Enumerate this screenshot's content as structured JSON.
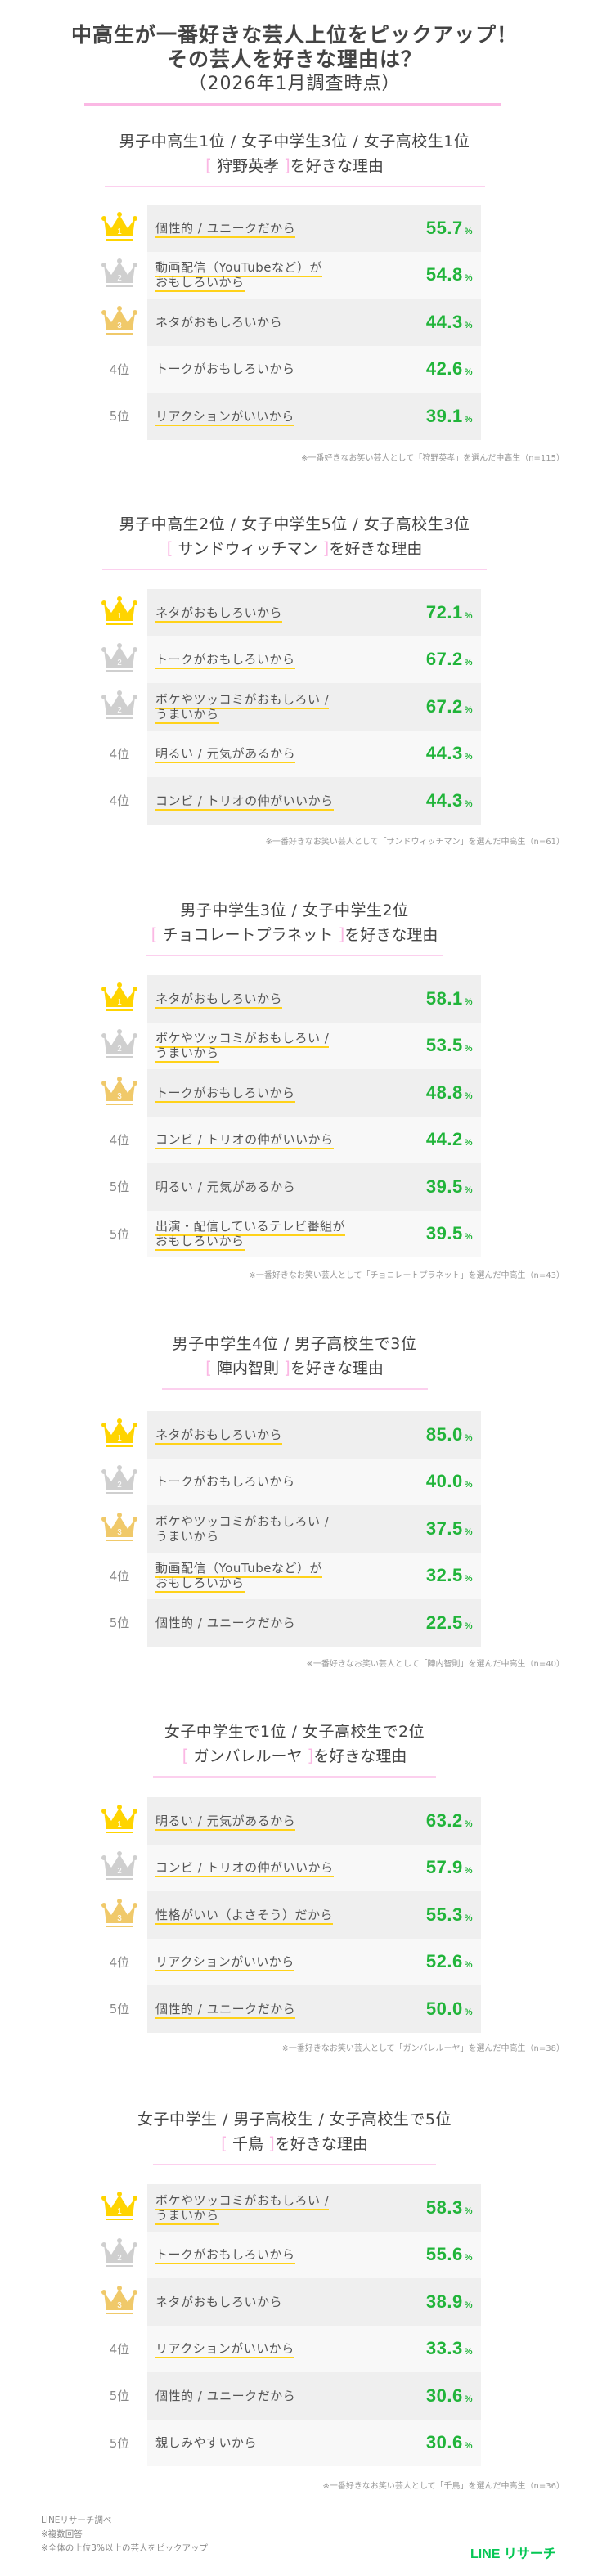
{
  "title": {
    "line1": "中高生が一番好きな芸人上位をピックアップ！",
    "line2": "その芸人を好きな理由は？",
    "line3": "（2026年1月調査時点）"
  },
  "colors": {
    "accent_pink": "#fbb8e4",
    "percent_green": "#21b43a",
    "underline_yellow": "#ffd21a",
    "gold_crown": "#ffd400",
    "silver_crown": "#cccccc",
    "bronze_crown": "#f0c96a",
    "brand_green": "#06c755"
  },
  "sections": [
    {
      "rank_line": "男子中高生1位 / 女子中学生3位 / 女子高校生1位",
      "name": "狩野英孝",
      "suffix": "を好きな理由",
      "note": "※一番好きなお笑い芸人として「狩野英孝」を選んだ中高生（n=115）",
      "rows": [
        {
          "rank": "1",
          "lines": [
            "個性的 / ユニークだから"
          ],
          "pct": "55.7"
        },
        {
          "rank": "2",
          "lines": [
            "動画配信（YouTubeなど）が",
            "おもしろいから"
          ],
          "pct": "54.8"
        },
        {
          "rank": "3",
          "lines": [
            "ネタがおもしろいから"
          ],
          "pct": "44.3"
        },
        {
          "rank": "4位",
          "lines": [
            "トークがおもしろいから"
          ],
          "pct": "42.6"
        },
        {
          "rank": "5位",
          "lines": [
            "リアクションがいいから"
          ],
          "pct": "39.1"
        }
      ]
    },
    {
      "rank_line": "男子中高生2位 / 女子中学生5位 / 女子高校生3位",
      "name": "サンドウィッチマン",
      "suffix": "を好きな理由",
      "note": "※一番好きなお笑い芸人として「サンドウィッチマン」を選んだ中高生（n=61）",
      "rows": [
        {
          "rank": "1",
          "lines": [
            "ネタがおもしろいから"
          ],
          "pct": "72.1"
        },
        {
          "rank": "2",
          "lines": [
            "トークがおもしろいから"
          ],
          "pct": "67.2"
        },
        {
          "rank": "2",
          "lines": [
            "ボケやツッコミがおもしろい /",
            "うまいから"
          ],
          "pct": "67.2"
        },
        {
          "rank": "4位",
          "lines": [
            "明るい / 元気があるから"
          ],
          "pct": "44.3"
        },
        {
          "rank": "4位",
          "lines": [
            "コンビ / トリオの仲がいいから"
          ],
          "pct": "44.3"
        }
      ]
    },
    {
      "rank_line": "男子中学生3位 / 女子中学生2位",
      "name": "チョコレートプラネット",
      "suffix": "を好きな理由",
      "note": "※一番好きなお笑い芸人として「チョコレートプラネット」を選んだ中高生（n=43）",
      "rows": [
        {
          "rank": "1",
          "lines": [
            "ネタがおもしろいから"
          ],
          "pct": "58.1"
        },
        {
          "rank": "2",
          "lines": [
            "ボケやツッコミがおもしろい /",
            "うまいから"
          ],
          "pct": "53.5"
        },
        {
          "rank": "3",
          "lines": [
            "トークがおもしろいから"
          ],
          "pct": "48.8"
        },
        {
          "rank": "4位",
          "lines": [
            "コンビ / トリオの仲がいいから"
          ],
          "pct": "44.2"
        },
        {
          "rank": "5位",
          "lines": [
            "明るい / 元気があるから"
          ],
          "pct": "39.5"
        },
        {
          "rank": "5位",
          "lines": [
            "出演・配信しているテレビ番組が",
            "おもしろいから"
          ],
          "pct": "39.5"
        }
      ]
    },
    {
      "rank_line": "男子中学生4位 / 男子高校生で3位",
      "name": "陣内智則",
      "suffix": "を好きな理由",
      "note": "※一番好きなお笑い芸人として「陣内智則」を選んだ中高生（n=40）",
      "rows": [
        {
          "rank": "1",
          "lines": [
            "ネタがおもしろいから"
          ],
          "pct": "85.0"
        },
        {
          "rank": "2",
          "lines": [
            "トークがおもしろいから"
          ],
          "pct": "40.0"
        },
        {
          "rank": "3",
          "lines": [
            "ボケやツッコミがおもしろい /",
            "うまいから"
          ],
          "pct": "37.5"
        },
        {
          "rank": "4位",
          "lines": [
            "動画配信（YouTubeなど）が",
            "おもしろいから"
          ],
          "pct": "32.5"
        },
        {
          "rank": "5位",
          "lines": [
            "個性的 / ユニークだから"
          ],
          "pct": "22.5"
        }
      ]
    },
    {
      "rank_line": "女子中学生で1位 / 女子高校生で2位",
      "name": "ガンバレルーヤ",
      "suffix": "を好きな理由",
      "note": "※一番好きなお笑い芸人として「ガンバレルーヤ」を選んだ中高生（n=38）",
      "rows": [
        {
          "rank": "1",
          "lines": [
            "明るい / 元気があるから"
          ],
          "pct": "63.2"
        },
        {
          "rank": "2",
          "lines": [
            "コンビ / トリオの仲がいいから"
          ],
          "pct": "57.9"
        },
        {
          "rank": "3",
          "lines": [
            "性格がいい（よさそう）だから"
          ],
          "pct": "55.3"
        },
        {
          "rank": "4位",
          "lines": [
            "リアクションがいいから"
          ],
          "pct": "52.6"
        },
        {
          "rank": "5位",
          "lines": [
            "個性的 / ユニークだから"
          ],
          "pct": "50.0"
        }
      ]
    },
    {
      "rank_line": "女子中学生 / 男子高校生 / 女子高校生で5位",
      "name": "千鳥",
      "suffix": "を好きな理由",
      "note": "※一番好きなお笑い芸人として「千鳥」を選んだ中高生（n=36）",
      "rows": [
        {
          "rank": "1",
          "lines": [
            "ボケやツッコミがおもしろい /",
            "うまいから"
          ],
          "pct": "58.3"
        },
        {
          "rank": "2",
          "lines": [
            "トークがおもしろいから"
          ],
          "pct": "55.6"
        },
        {
          "rank": "3",
          "lines": [
            "ネタがおもしろいから"
          ],
          "pct": "38.9"
        },
        {
          "rank": "4位",
          "lines": [
            "リアクションがいいから"
          ],
          "pct": "33.3"
        },
        {
          "rank": "5位",
          "lines": [
            "個性的 / ユニークだから"
          ],
          "pct": "30.6"
        },
        {
          "rank": "5位",
          "lines": [
            "親しみやすいから"
          ],
          "pct": "30.6"
        }
      ]
    }
  ],
  "footer": {
    "source": "LINEリサーチ調べ",
    "note1": "※複数回答",
    "note2": "※全体の上位3%以上の芸人をピックアップ",
    "brand": "LINE リサーチ"
  },
  "percent_symbol": "%",
  "chart_data": [
    {
      "type": "table",
      "title": "狩野英孝を好きな理由",
      "categories": [
        "個性的 / ユニークだから",
        "動画配信（YouTubeなど）がおもしろいから",
        "ネタがおもしろいから",
        "トークがおもしろいから",
        "リアクションがいいから"
      ],
      "values": [
        55.7,
        54.8,
        44.3,
        42.6,
        39.1
      ],
      "ylabel": "%",
      "n": 115
    },
    {
      "type": "table",
      "title": "サンドウィッチマンを好きな理由",
      "categories": [
        "ネタがおもしろいから",
        "トークがおもしろいから",
        "ボケやツッコミがおもしろい / うまいから",
        "明るい / 元気があるから",
        "コンビ / トリオの仲がいいから"
      ],
      "values": [
        72.1,
        67.2,
        67.2,
        44.3,
        44.3
      ],
      "ylabel": "%",
      "n": 61
    },
    {
      "type": "table",
      "title": "チョコレートプラネットを好きな理由",
      "categories": [
        "ネタがおもしろいから",
        "ボケやツッコミがおもしろい / うまいから",
        "トークがおもしろいから",
        "コンビ / トリオの仲がいいから",
        "明るい / 元気があるから",
        "出演・配信しているテレビ番組がおもしろいから"
      ],
      "values": [
        58.1,
        53.5,
        48.8,
        44.2,
        39.5,
        39.5
      ],
      "ylabel": "%",
      "n": 43
    },
    {
      "type": "table",
      "title": "陣内智則を好きな理由",
      "categories": [
        "ネタがおもしろいから",
        "トークがおもしろいから",
        "ボケやツッコミがおもしろい / うまいから",
        "動画配信（YouTubeなど）がおもしろいから",
        "個性的 / ユニークだから"
      ],
      "values": [
        85.0,
        40.0,
        37.5,
        32.5,
        22.5
      ],
      "ylabel": "%",
      "n": 40
    },
    {
      "type": "table",
      "title": "ガンバレルーヤを好きな理由",
      "categories": [
        "明るい / 元気があるから",
        "コンビ / トリオの仲がいいから",
        "性格がいい（よさそう）だから",
        "リアクションがいいから",
        "個性的 / ユニークだから"
      ],
      "values": [
        63.2,
        57.9,
        55.3,
        52.6,
        50.0
      ],
      "ylabel": "%",
      "n": 38
    },
    {
      "type": "table",
      "title": "千鳥を好きな理由",
      "categories": [
        "ボケやツッコミがおもしろい / うまいから",
        "トークがおもしろいから",
        "ネタがおもしろいから",
        "リアクションがいいから",
        "個性的 / ユニークだから",
        "親しみやすいから"
      ],
      "values": [
        58.3,
        55.6,
        38.9,
        33.3,
        30.6,
        30.6
      ],
      "ylabel": "%",
      "n": 36
    }
  ]
}
